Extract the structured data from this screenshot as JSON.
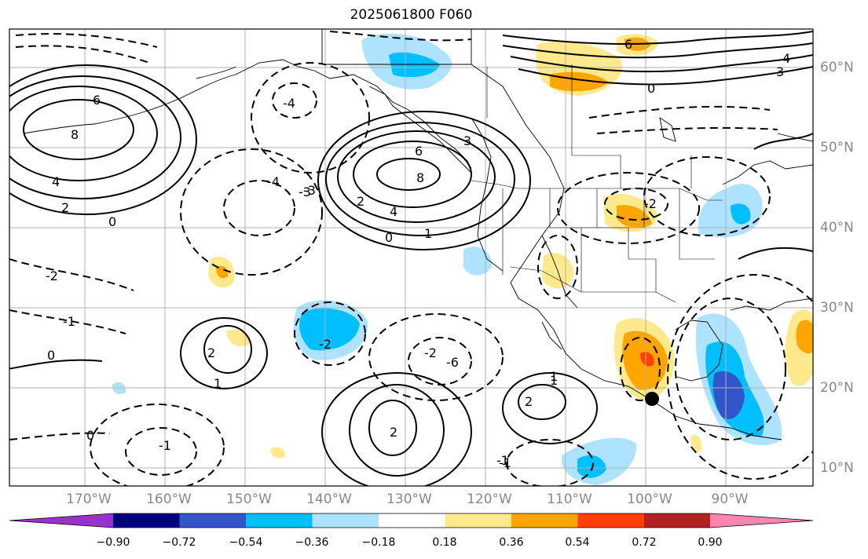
{
  "title": "2025061800 F060",
  "map": {
    "lon_labels": [
      "170°W",
      "160°W",
      "150°W",
      "140°W",
      "130°W",
      "120°W",
      "110°W",
      "100°W",
      "90°W"
    ],
    "lat_labels": [
      "60°N",
      "50°N",
      "40°N",
      "30°N",
      "20°N",
      "10°N"
    ],
    "marker": "filled-circle"
  },
  "contours": {
    "line_color": "#000000",
    "positive_style": "solid",
    "negative_style": "dashed",
    "labels": [
      "6",
      "8",
      "4",
      "2",
      "0",
      "-1",
      "-2",
      "-3",
      "-4",
      "6",
      "8",
      "4",
      "3",
      "2",
      "1",
      "0",
      "-2",
      "-4",
      "-6",
      "1",
      "2",
      "-1",
      "0",
      "-2",
      "-1",
      "2",
      "1",
      "0",
      "-3",
      "-2",
      "-1",
      "0",
      "1",
      "2",
      "3",
      "4",
      "6"
    ]
  },
  "colorbar": {
    "colors": [
      "#9932cc",
      "#000080",
      "#3355cc",
      "#00bfff",
      "#aee3ff",
      "#ffffff",
      "#ffe98c",
      "#ffa500",
      "#ff4000",
      "#b22222",
      "#ff85b0"
    ],
    "ticks": [
      "−0.90",
      "−0.72",
      "−0.54",
      "−0.36",
      "−0.18",
      "0.18",
      "0.36",
      "0.54",
      "0.72",
      "0.90"
    ]
  }
}
